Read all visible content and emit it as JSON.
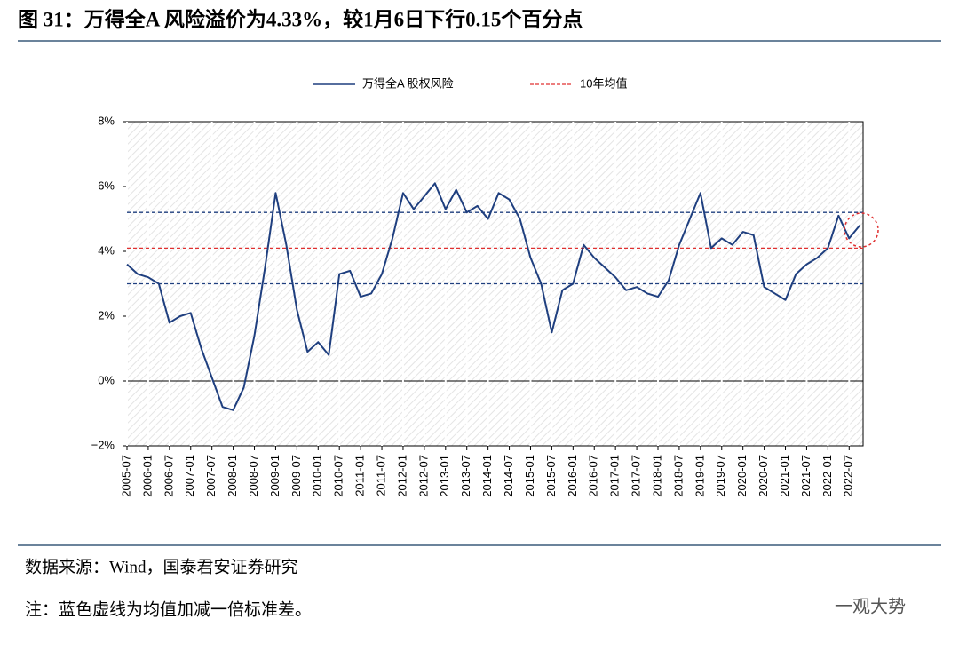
{
  "header": {
    "title": "图 31：万得全A 风险溢价为4.33%，较1月6日下行0.15个百分点"
  },
  "chart_data": {
    "type": "line",
    "categories": [
      "2005-07",
      null,
      "2006-01",
      null,
      "2006-07",
      null,
      "2007-01",
      null,
      "2007-07",
      null,
      "2008-01",
      null,
      "2008-07",
      null,
      "2009-01",
      null,
      "2009-07",
      null,
      "2010-01",
      null,
      "2010-07",
      null,
      "2011-01",
      null,
      "2011-07",
      null,
      "2012-01",
      null,
      "2012-07",
      null,
      "2013-01",
      null,
      "2013-07",
      null,
      "2014-01",
      null,
      "2014-07",
      null,
      "2015-01",
      null,
      "2015-07",
      null,
      "2016-01",
      null,
      "2016-07",
      null,
      "2017-01",
      null,
      "2017-07",
      null,
      "2018-01",
      null,
      "2018-07",
      null,
      "2019-01",
      null,
      "2019-07",
      null,
      "2020-01",
      null,
      "2020-07",
      null,
      "2021-01",
      null,
      "2021-07",
      null,
      "2022-01",
      null,
      "2022-07",
      null
    ],
    "series": [
      {
        "name": "万得全A 股权风险",
        "color": "#1f3f7f",
        "values": [
          3.6,
          3.3,
          3.2,
          3.0,
          1.8,
          2.0,
          2.1,
          1.0,
          0.1,
          -0.8,
          -0.9,
          -0.2,
          1.4,
          3.5,
          5.8,
          4.2,
          2.2,
          0.9,
          1.2,
          0.8,
          3.3,
          3.4,
          2.6,
          2.7,
          3.3,
          4.4,
          5.8,
          5.3,
          5.7,
          6.1,
          5.3,
          5.9,
          5.2,
          5.4,
          5.0,
          5.8,
          5.6,
          5.0,
          3.8,
          3.0,
          1.5,
          2.8,
          3.0,
          4.2,
          3.8,
          3.5,
          3.2,
          2.8,
          2.9,
          2.7,
          2.6,
          3.1,
          4.2,
          5.0,
          5.8,
          4.1,
          4.4,
          4.2,
          4.6,
          4.5,
          2.9,
          2.7,
          2.5,
          3.3,
          3.6,
          3.8,
          4.1,
          5.1,
          4.4,
          4.8
        ]
      }
    ],
    "reference_lines": [
      {
        "name": "10年均值",
        "value": 4.1,
        "color": "#e03030"
      },
      {
        "value": 5.2,
        "color": "#1f3f7f"
      },
      {
        "value": 3.0,
        "color": "#1f3f7f"
      }
    ],
    "ylim": [
      -2,
      8
    ],
    "yticks": [
      {
        "value": -2,
        "label": "−2%"
      },
      {
        "value": 0,
        "label": "0%"
      },
      {
        "value": 2,
        "label": "2%"
      },
      {
        "value": 4,
        "label": "4%"
      },
      {
        "value": 6,
        "label": "6%"
      },
      {
        "value": 8,
        "label": "8%"
      }
    ],
    "legend": "top"
  },
  "footer": {
    "source": "数据来源：Wind，国泰君安证券研究",
    "note": "注：蓝色虚线为均值加减一倍标准差。",
    "watermark": "一观大势"
  }
}
